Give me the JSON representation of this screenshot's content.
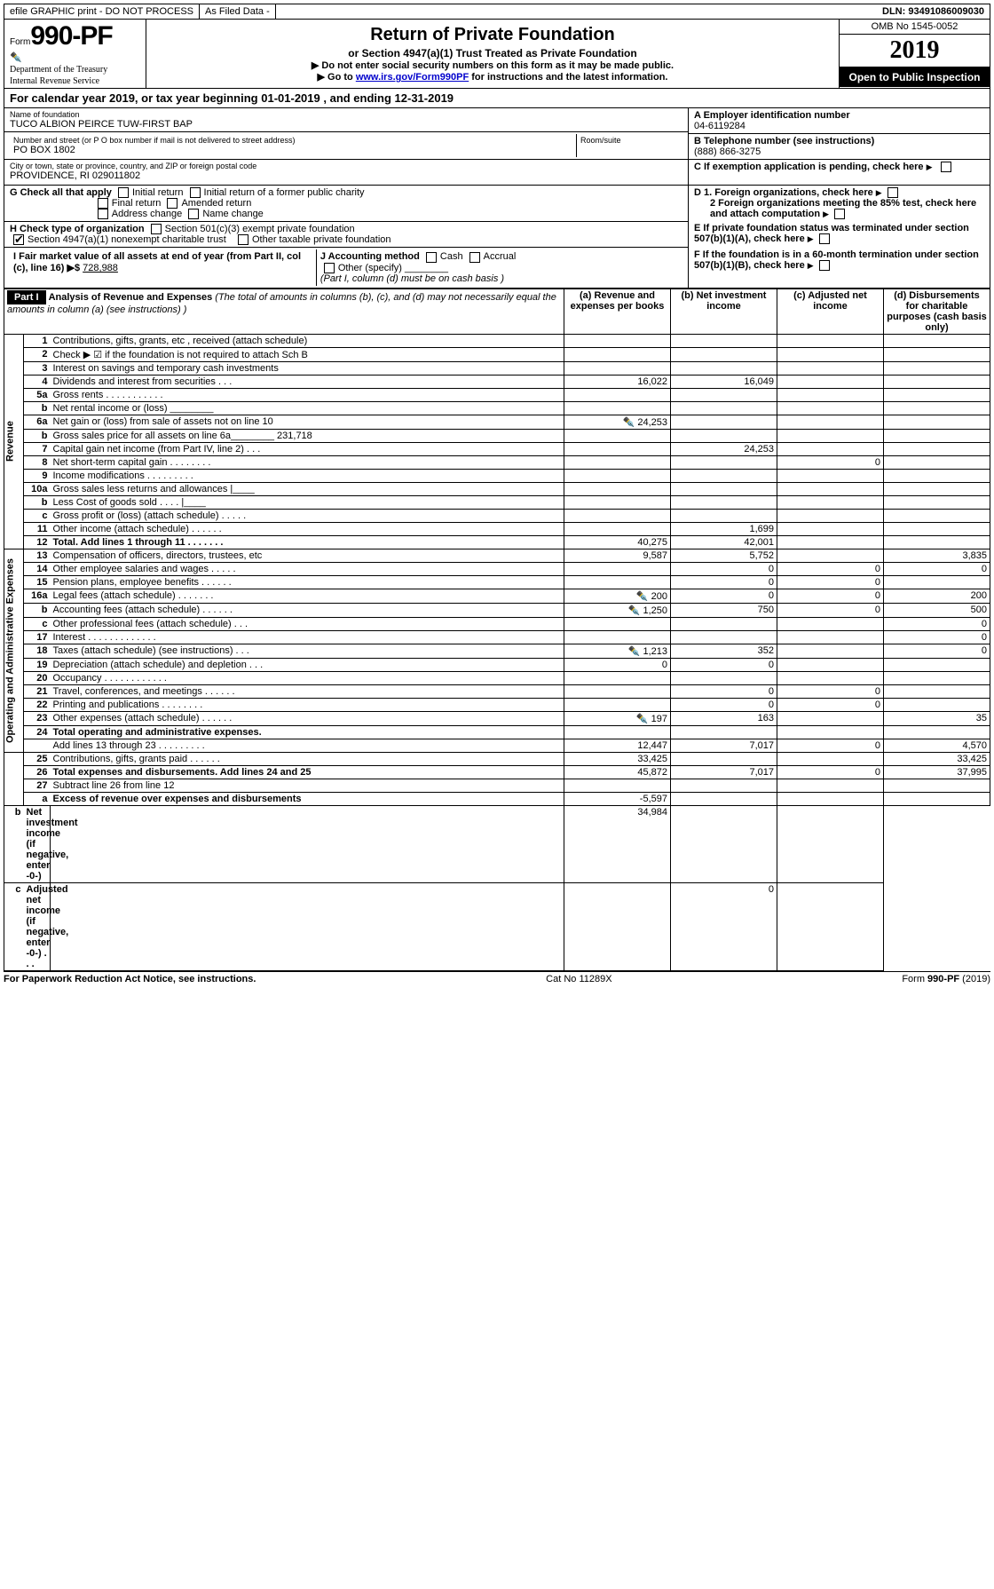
{
  "top": {
    "efile": "efile GRAPHIC print - DO NOT PROCESS",
    "asfiled": "As Filed Data -",
    "dln": "DLN: 93491086009030"
  },
  "header": {
    "form_prefix": "Form",
    "form_no": "990-PF",
    "dept1": "Department of the Treasury",
    "dept2": "Internal Revenue Service",
    "title": "Return of Private Foundation",
    "subtitle": "or Section 4947(a)(1) Trust Treated as Private Foundation",
    "instr1": "▶ Do not enter social security numbers on this form as it may be made public.",
    "instr2_pre": "▶ Go to ",
    "instr2_link": "www.irs.gov/Form990PF",
    "instr2_post": " for instructions and the latest information.",
    "omb": "OMB No 1545-0052",
    "year": "2019",
    "inspection": "Open to Public Inspection"
  },
  "calyear": {
    "pre": "For calendar year 2019, or tax year beginning ",
    "begin": "01-01-2019",
    "mid": " , and ending ",
    "end": "12-31-2019"
  },
  "entity": {
    "name_lbl": "Name of foundation",
    "name": "TUCO ALBION PEIRCE TUW-FIRST BAP",
    "addr_lbl": "Number and street (or P O  box number if mail is not delivered to street address)",
    "room_lbl": "Room/suite",
    "addr": "PO BOX 1802",
    "city_lbl": "City or town, state or province, country, and ZIP or foreign postal code",
    "city": "PROVIDENCE, RI  029011802",
    "a_lbl": "A Employer identification number",
    "a_val": "04-6119284",
    "b_lbl": "B Telephone number (see instructions)",
    "b_val": "(888) 866-3275",
    "c_lbl": "C If exemption application is pending, check here"
  },
  "checks": {
    "g_label": "G Check all that apply",
    "g": [
      "Initial return",
      "Initial return of a former public charity",
      "Final return",
      "Amended return",
      "Address change",
      "Name change"
    ],
    "h_label": "H Check type of organization",
    "h": [
      "Section 501(c)(3) exempt private foundation",
      "Section 4947(a)(1) nonexempt charitable trust",
      "Other taxable private foundation"
    ],
    "i_label": "I Fair market value of all assets at end of year (from Part II, col  (c), line 16) ▶$ ",
    "i_val": "728,988",
    "j_label": "J Accounting method",
    "j": [
      "Cash",
      "Accrual",
      "Other (specify)"
    ],
    "j_note": "(Part I, column (d) must be on cash basis )",
    "d1": "D 1. Foreign organizations, check here",
    "d2": "2  Foreign organizations meeting the 85% test, check here and attach computation",
    "e": "E  If private foundation status was terminated under section 507(b)(1)(A), check here",
    "f": "F  If the foundation is in a 60-month termination under section 507(b)(1)(B), check here"
  },
  "part1": {
    "label": "Part I",
    "title": "Analysis of Revenue and Expenses",
    "note": " (The total of amounts in columns (b), (c), and (d) may not necessarily equal the amounts in column (a) (see instructions) )",
    "col_a": "(a) Revenue and expenses per books",
    "col_b": "(b) Net investment income",
    "col_c": "(c) Adjusted net income",
    "col_d": "(d) Disbursements for charitable purposes (cash basis only)",
    "revenue_label": "Revenue",
    "expenses_label": "Operating and Administrative Expenses"
  },
  "rows": [
    {
      "n": "1",
      "d": "Contributions, gifts, grants, etc , received (attach schedule)",
      "a": "",
      "b": "",
      "c": "",
      "e": ""
    },
    {
      "n": "2",
      "d": "Check ▶ ☑ if the foundation is not required to attach Sch B",
      "a": "",
      "b": "",
      "c": "",
      "e": ""
    },
    {
      "n": "3",
      "d": "Interest on savings and temporary cash investments",
      "a": "",
      "b": "",
      "c": "",
      "e": ""
    },
    {
      "n": "4",
      "d": "Dividends and interest from securities   .   .   .",
      "a": "16,022",
      "b": "16,049",
      "c": "",
      "e": ""
    },
    {
      "n": "5a",
      "d": "Gross rents   .   .   .   .   .   .   .   .   .   .   .",
      "a": "",
      "b": "",
      "c": "",
      "e": ""
    },
    {
      "n": "b",
      "d": "Net rental income or (loss)  ________",
      "a": "",
      "b": "",
      "c": "",
      "e": ""
    },
    {
      "n": "6a",
      "d": "Net gain or (loss) from sale of assets not on line 10",
      "icon": true,
      "a": "24,253",
      "b": "",
      "c": "",
      "e": ""
    },
    {
      "n": "b",
      "d": "Gross sales price for all assets on line 6a________ 231,718",
      "a": "",
      "b": "",
      "c": "",
      "e": ""
    },
    {
      "n": "7",
      "d": "Capital gain net income (from Part IV, line 2)   .   .   .",
      "a": "",
      "b": "24,253",
      "c": "",
      "e": ""
    },
    {
      "n": "8",
      "d": "Net short-term capital gain   .   .   .   .   .   .   .   .",
      "a": "",
      "b": "",
      "c": "0",
      "e": ""
    },
    {
      "n": "9",
      "d": "Income modifications   .   .   .   .   .   .   .   .   .",
      "a": "",
      "b": "",
      "c": "",
      "e": ""
    },
    {
      "n": "10a",
      "d": "Gross sales less returns and allowances |____",
      "a": "",
      "b": "",
      "c": "",
      "e": ""
    },
    {
      "n": "b",
      "d": "Less  Cost of goods sold   .   .   .   .  |____",
      "a": "",
      "b": "",
      "c": "",
      "e": ""
    },
    {
      "n": "c",
      "d": "Gross profit or (loss) (attach schedule)   .   .   .   .   .",
      "a": "",
      "b": "",
      "c": "",
      "e": ""
    },
    {
      "n": "11",
      "d": "Other income (attach schedule)   .   .   .   .   .   .",
      "a": "",
      "b": "1,699",
      "c": "",
      "e": ""
    },
    {
      "n": "12",
      "d": "Total. Add lines 1 through 11   .   .   .   .   .   .   .",
      "bold": true,
      "a": "40,275",
      "b": "42,001",
      "c": "",
      "e": ""
    },
    {
      "n": "13",
      "d": "Compensation of officers, directors, trustees, etc",
      "a": "9,587",
      "b": "5,752",
      "c": "",
      "e": "3,835"
    },
    {
      "n": "14",
      "d": "Other employee salaries and wages   .   .   .   .   .",
      "a": "",
      "b": "0",
      "c": "0",
      "e": "0"
    },
    {
      "n": "15",
      "d": "Pension plans, employee benefits   .   .   .   .   .   .",
      "a": "",
      "b": "0",
      "c": "0",
      "e": ""
    },
    {
      "n": "16a",
      "d": "Legal fees (attach schedule)   .   .   .   .   .   .   .",
      "icon": true,
      "a": "200",
      "b": "0",
      "c": "0",
      "e": "200"
    },
    {
      "n": "b",
      "d": "Accounting fees (attach schedule)   .   .   .   .   .   .",
      "icon": true,
      "a": "1,250",
      "b": "750",
      "c": "0",
      "e": "500"
    },
    {
      "n": "c",
      "d": "Other professional fees (attach schedule)   .   .   .",
      "a": "",
      "b": "",
      "c": "",
      "e": "0"
    },
    {
      "n": "17",
      "d": "Interest   .   .   .   .   .   .   .   .   .   .   .   .   .",
      "a": "",
      "b": "",
      "c": "",
      "e": "0"
    },
    {
      "n": "18",
      "d": "Taxes (attach schedule) (see instructions)   .   .   .",
      "icon": true,
      "a": "1,213",
      "b": "352",
      "c": "",
      "e": "0"
    },
    {
      "n": "19",
      "d": "Depreciation (attach schedule) and depletion   .   .   .",
      "a": "0",
      "b": "0",
      "c": "",
      "e": ""
    },
    {
      "n": "20",
      "d": "Occupancy   .   .   .   .   .   .   .   .   .   .   .   .",
      "a": "",
      "b": "",
      "c": "",
      "e": ""
    },
    {
      "n": "21",
      "d": "Travel, conferences, and meetings   .   .   .   .   .   .",
      "a": "",
      "b": "0",
      "c": "0",
      "e": ""
    },
    {
      "n": "22",
      "d": "Printing and publications   .   .   .   .   .   .   .   .",
      "a": "",
      "b": "0",
      "c": "0",
      "e": ""
    },
    {
      "n": "23",
      "d": "Other expenses (attach schedule)   .   .   .   .   .   .",
      "icon": true,
      "a": "197",
      "b": "163",
      "c": "",
      "e": "35"
    },
    {
      "n": "24",
      "d": "Total operating and administrative expenses.",
      "bold": true,
      "a": "",
      "b": "",
      "c": "",
      "e": ""
    },
    {
      "n": "",
      "d": "Add lines 13 through 23   .   .   .   .   .   .   .   .   .",
      "a": "12,447",
      "b": "7,017",
      "c": "0",
      "e": "4,570"
    },
    {
      "n": "25",
      "d": "Contributions, gifts, grants paid   .   .   .   .   .   .",
      "a": "33,425",
      "b": "",
      "c": "",
      "e": "33,425"
    },
    {
      "n": "26",
      "d": "Total expenses and disbursements. Add lines 24 and 25",
      "bold": true,
      "a": "45,872",
      "b": "7,017",
      "c": "0",
      "e": "37,995"
    },
    {
      "n": "27",
      "d": "Subtract line 26 from line 12",
      "a": "",
      "b": "",
      "c": "",
      "e": ""
    },
    {
      "n": "a",
      "d": "Excess of revenue over expenses and disbursements",
      "bold": true,
      "a": "-5,597",
      "b": "",
      "c": "",
      "e": ""
    },
    {
      "n": "b",
      "d": "Net investment income (if negative, enter -0-)",
      "bold": true,
      "a": "",
      "b": "34,984",
      "c": "",
      "e": ""
    },
    {
      "n": "c",
      "d": "Adjusted net income (if negative, enter -0-)   .   .   .",
      "bold": true,
      "a": "",
      "b": "",
      "c": "0",
      "e": ""
    }
  ],
  "footer": {
    "left": "For Paperwork Reduction Act Notice, see instructions.",
    "mid": "Cat  No  11289X",
    "right": "Form 990-PF (2019)"
  }
}
